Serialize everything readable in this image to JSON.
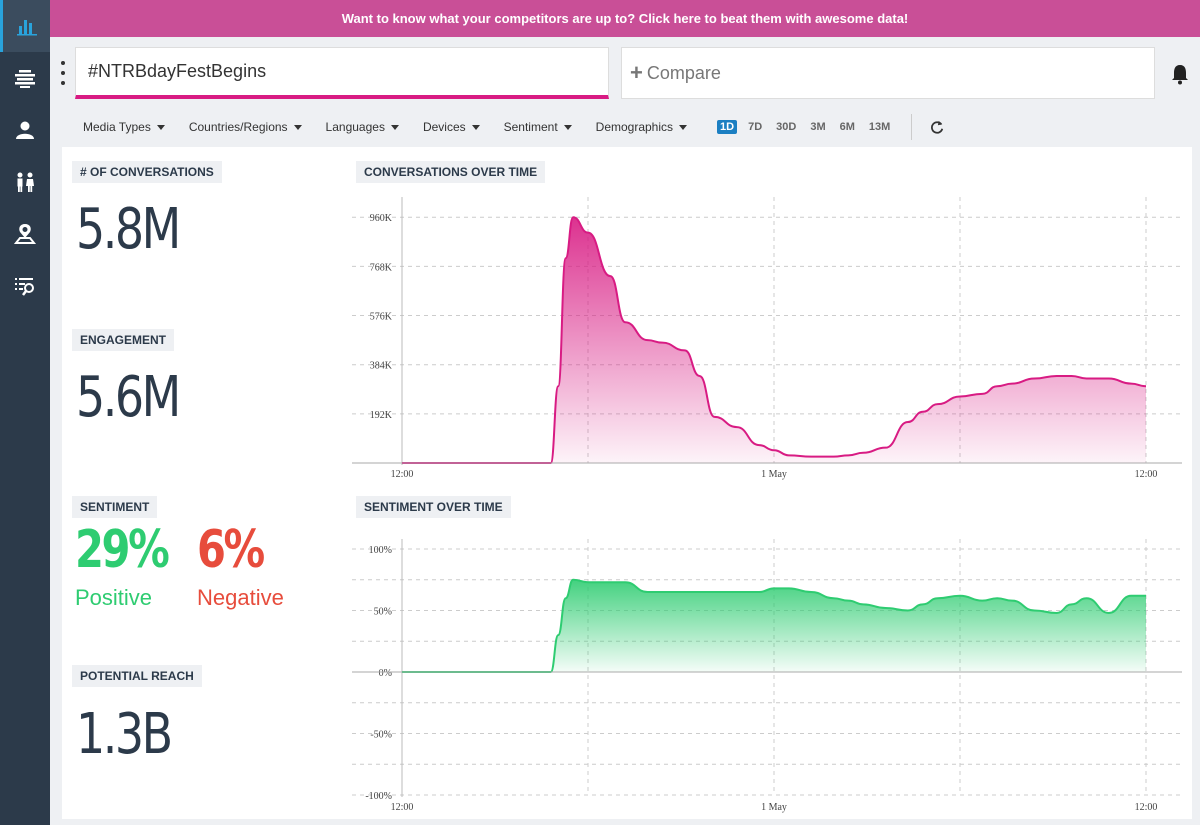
{
  "banner": {
    "text": "Want to know what your competitors are up to? Click here to beat them with awesome data!"
  },
  "sidebar": {
    "items": [
      {
        "icon": "bar-chart-icon",
        "active": true
      },
      {
        "icon": "stream-icon"
      },
      {
        "icon": "user-icon"
      },
      {
        "icon": "people-icon"
      },
      {
        "icon": "location-pin-icon"
      },
      {
        "icon": "list-search-icon"
      }
    ]
  },
  "search": {
    "value": "#NTRBdayFestBegins",
    "compare_label": "Compare"
  },
  "filters": {
    "items": [
      "Media Types",
      "Countries/Regions",
      "Languages",
      "Devices",
      "Sentiment",
      "Demographics"
    ],
    "ranges": [
      "1D",
      "7D",
      "30D",
      "3M",
      "6M",
      "13M"
    ],
    "active_range": "1D"
  },
  "metrics": {
    "conversations": {
      "label": "# OF CONVERSATIONS",
      "value": "5.8M"
    },
    "engagement": {
      "label": "ENGAGEMENT",
      "value": "5.6M"
    },
    "sentiment": {
      "label": "SENTIMENT",
      "positive_value": "29%",
      "positive_label": "Positive",
      "negative_value": "6%",
      "negative_label": "Negative"
    },
    "reach": {
      "label": "POTENTIAL REACH",
      "value": "1.3B"
    }
  },
  "colors": {
    "accent": "#d81b83",
    "banner": "#c94f97",
    "positive": "#2ecc71",
    "negative": "#e74c3c",
    "sidebar": "#2c3a4a"
  },
  "chart_data": [
    {
      "type": "area",
      "title": "CONVERSATIONS OVER TIME",
      "x_ticks": [
        "12:00",
        "1 May",
        "12:00"
      ],
      "y_ticks": [
        "192K",
        "384K",
        "576K",
        "768K",
        "960K"
      ],
      "ylim": [
        0,
        1000000
      ],
      "x": [
        0,
        0.1,
        0.2,
        0.21,
        0.22,
        0.23,
        0.25,
        0.28,
        0.3,
        0.33,
        0.35,
        0.38,
        0.4,
        0.42,
        0.45,
        0.48,
        0.5,
        0.52,
        0.55,
        0.58,
        0.6,
        0.62,
        0.65,
        0.68,
        0.7,
        0.72,
        0.75,
        0.78,
        0.8,
        0.82,
        0.85,
        0.88,
        0.9,
        0.92,
        0.95,
        0.98,
        1.0
      ],
      "values": [
        0,
        0,
        0,
        300000,
        800000,
        960000,
        900000,
        730000,
        550000,
        480000,
        470000,
        440000,
        340000,
        180000,
        140000,
        70000,
        50000,
        30000,
        25000,
        25000,
        30000,
        40000,
        60000,
        160000,
        200000,
        230000,
        260000,
        270000,
        300000,
        310000,
        330000,
        340000,
        340000,
        330000,
        330000,
        310000,
        300000
      ],
      "series": [
        {
          "name": "",
          "color": "#d81b83"
        }
      ]
    },
    {
      "type": "area",
      "title": "SENTIMENT OVER TIME",
      "x_ticks": [
        "12:00",
        "1 May",
        "12:00"
      ],
      "y_ticks": [
        "100%",
        "50%",
        "0%",
        "-50%",
        "-100%"
      ],
      "ylim": [
        -100,
        100
      ],
      "x": [
        0,
        0.1,
        0.2,
        0.21,
        0.22,
        0.23,
        0.25,
        0.28,
        0.3,
        0.33,
        0.35,
        0.38,
        0.4,
        0.42,
        0.45,
        0.48,
        0.5,
        0.52,
        0.55,
        0.58,
        0.6,
        0.62,
        0.65,
        0.68,
        0.7,
        0.72,
        0.75,
        0.78,
        0.8,
        0.82,
        0.85,
        0.88,
        0.9,
        0.92,
        0.95,
        0.98,
        1.0
      ],
      "values": [
        0,
        0,
        0,
        30,
        60,
        75,
        73,
        73,
        73,
        65,
        65,
        65,
        65,
        65,
        65,
        65,
        68,
        68,
        65,
        60,
        58,
        55,
        52,
        50,
        55,
        60,
        62,
        58,
        60,
        58,
        50,
        48,
        55,
        60,
        48,
        62,
        62
      ],
      "series": [
        {
          "name": "",
          "color": "#2ecc71"
        }
      ]
    }
  ]
}
